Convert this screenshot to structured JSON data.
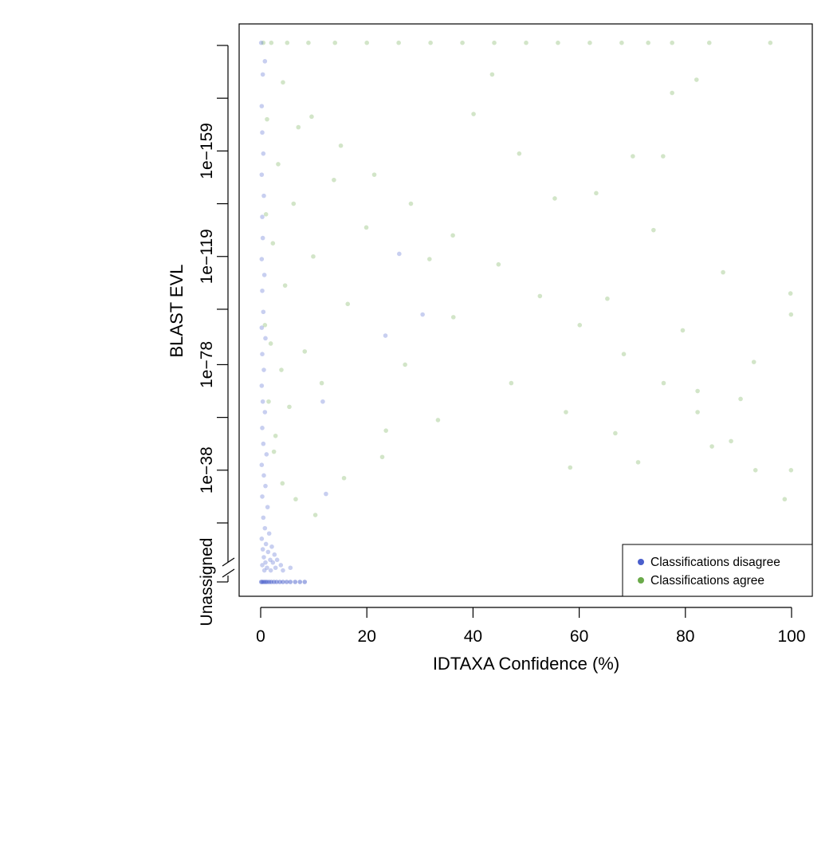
{
  "chart_data": {
    "type": "scatter",
    "xlabel": "IDTAXA Confidence (%)",
    "ylabel": "BLAST EVL",
    "xlim": [
      0,
      100
    ],
    "x_ticks": [
      0,
      20,
      40,
      60,
      80,
      100
    ],
    "y_scale": "log10 (reversed: smaller E-value is higher)",
    "y_ticks_log10": [
      -199,
      -179,
      -159,
      -139,
      -119,
      -99,
      -78,
      -58,
      -38,
      -18
    ],
    "y_tick_labels": [
      {
        "log10": -159,
        "label": "1e−159"
      },
      {
        "log10": -119,
        "label": "1e−119"
      },
      {
        "log10": -78,
        "label": "1e−78"
      },
      {
        "log10": -38,
        "label": "1e−38"
      }
    ],
    "y_unassigned_label": "Unassigned",
    "y_axis_break": true,
    "grid": false,
    "legend": {
      "placement": "bottom-right",
      "entries": [
        {
          "name": "Classifications disagree",
          "color": "#4a5fcc"
        },
        {
          "name": "Classifications agree",
          "color": "#6aaa4a"
        }
      ]
    },
    "series": [
      {
        "name": "Classifications disagree",
        "color": "#4a5fcc",
        "points": [
          [
            0.1,
            -200
          ],
          [
            0.4,
            -188
          ],
          [
            0.8,
            -193
          ],
          [
            0.2,
            -176
          ],
          [
            0.3,
            -166
          ],
          [
            0.5,
            -158
          ],
          [
            0.2,
            -150
          ],
          [
            0.6,
            -142
          ],
          [
            0.3,
            -134
          ],
          [
            0.4,
            -126
          ],
          [
            0.2,
            -118
          ],
          [
            0.7,
            -112
          ],
          [
            0.3,
            -106
          ],
          [
            0.5,
            -98
          ],
          [
            0.2,
            -92
          ],
          [
            0.9,
            -88
          ],
          [
            0.3,
            -82
          ],
          [
            0.6,
            -76
          ],
          [
            0.2,
            -70
          ],
          [
            0.4,
            -64
          ],
          [
            0.8,
            -60
          ],
          [
            0.3,
            -54
          ],
          [
            0.5,
            -48
          ],
          [
            1.1,
            -44
          ],
          [
            0.2,
            -40
          ],
          [
            0.6,
            -36
          ],
          [
            0.9,
            -32
          ],
          [
            0.3,
            -28
          ],
          [
            1.3,
            -24
          ],
          [
            0.5,
            -20
          ],
          [
            0.8,
            -16
          ],
          [
            1.6,
            -14
          ],
          [
            0.2,
            -12
          ],
          [
            1.0,
            -10
          ],
          [
            2.1,
            -9
          ],
          [
            0.4,
            -8
          ],
          [
            1.4,
            -7
          ],
          [
            2.6,
            -6
          ],
          [
            0.6,
            -5
          ],
          [
            1.8,
            -4
          ],
          [
            3.1,
            -4
          ],
          [
            0.9,
            -3
          ],
          [
            2.3,
            -3
          ],
          [
            3.8,
            -2
          ],
          [
            0.3,
            -2
          ],
          [
            1.2,
            -1
          ],
          [
            2.8,
            -1
          ],
          [
            5.6,
            -1
          ],
          [
            0.7,
            0
          ],
          [
            1.9,
            0
          ],
          [
            4.2,
            0
          ],
          [
            30.5,
            -97
          ],
          [
            23.5,
            -89
          ],
          [
            11.7,
            -64
          ],
          [
            12.3,
            -29
          ],
          [
            26.1,
            -120
          ]
        ],
        "unassigned_x": [
          0.1,
          0.3,
          0.6,
          0.9,
          1.2,
          1.6,
          2.0,
          2.5,
          3.0,
          3.6,
          4.2,
          4.9,
          5.6,
          6.5,
          7.4,
          8.3
        ]
      },
      {
        "name": "Classifications agree",
        "color": "#6aaa4a",
        "points": [
          [
            0.5,
            -200
          ],
          [
            2,
            -200
          ],
          [
            5,
            -200
          ],
          [
            9,
            -200
          ],
          [
            14,
            -200
          ],
          [
            20,
            -200
          ],
          [
            26,
            -200
          ],
          [
            32,
            -200
          ],
          [
            38,
            -200
          ],
          [
            44,
            -200
          ],
          [
            50,
            -200
          ],
          [
            56,
            -200
          ],
          [
            62,
            -200
          ],
          [
            68,
            -200
          ],
          [
            73,
            -200
          ],
          [
            77.5,
            -200
          ],
          [
            84.5,
            -200
          ],
          [
            96,
            -200
          ],
          [
            4.2,
            -185
          ],
          [
            9.6,
            -172
          ],
          [
            15.1,
            -161
          ],
          [
            21.4,
            -150
          ],
          [
            28.3,
            -139
          ],
          [
            36.2,
            -127
          ],
          [
            44.8,
            -116
          ],
          [
            52.6,
            -104
          ],
          [
            60.1,
            -93
          ],
          [
            68.4,
            -82
          ],
          [
            75.9,
            -71
          ],
          [
            82.3,
            -60
          ],
          [
            88.6,
            -49
          ],
          [
            93.2,
            -38
          ],
          [
            98.7,
            -27
          ],
          [
            99.8,
            -105
          ],
          [
            99.9,
            -97
          ],
          [
            99.9,
            -38
          ],
          [
            92.9,
            -79
          ],
          [
            90.4,
            -65
          ],
          [
            82.3,
            -68
          ],
          [
            75.8,
            -157
          ],
          [
            82.1,
            -186
          ],
          [
            77.5,
            -181
          ],
          [
            74.0,
            -129
          ],
          [
            70.1,
            -157
          ],
          [
            85.0,
            -47
          ],
          [
            71.1,
            -41
          ],
          [
            65.3,
            -103
          ],
          [
            63.2,
            -143
          ],
          [
            57.5,
            -60
          ],
          [
            55.4,
            -141
          ],
          [
            48.7,
            -158
          ],
          [
            43.6,
            -188
          ],
          [
            40.1,
            -173
          ],
          [
            36.3,
            -96
          ],
          [
            31.8,
            -118
          ],
          [
            27.2,
            -78
          ],
          [
            23.6,
            -53
          ],
          [
            19.9,
            -130
          ],
          [
            16.4,
            -101
          ],
          [
            13.8,
            -148
          ],
          [
            11.5,
            -71
          ],
          [
            9.9,
            -119
          ],
          [
            8.3,
            -83
          ],
          [
            7.1,
            -168
          ],
          [
            6.2,
            -139
          ],
          [
            5.4,
            -62
          ],
          [
            4.6,
            -108
          ],
          [
            3.9,
            -76
          ],
          [
            3.3,
            -154
          ],
          [
            2.8,
            -51
          ],
          [
            2.3,
            -124
          ],
          [
            1.9,
            -86
          ],
          [
            1.5,
            -64
          ],
          [
            1.2,
            -171
          ],
          [
            1.0,
            -135
          ],
          [
            0.8,
            -93
          ],
          [
            2.5,
            -45
          ],
          [
            4.1,
            -33
          ],
          [
            6.6,
            -27
          ],
          [
            10.3,
            -21
          ],
          [
            15.7,
            -35
          ],
          [
            22.9,
            -43
          ],
          [
            33.4,
            -57
          ],
          [
            47.2,
            -71
          ],
          [
            58.3,
            -39
          ],
          [
            66.8,
            -52
          ],
          [
            79.5,
            -91
          ],
          [
            87.1,
            -113
          ]
        ]
      }
    ]
  }
}
